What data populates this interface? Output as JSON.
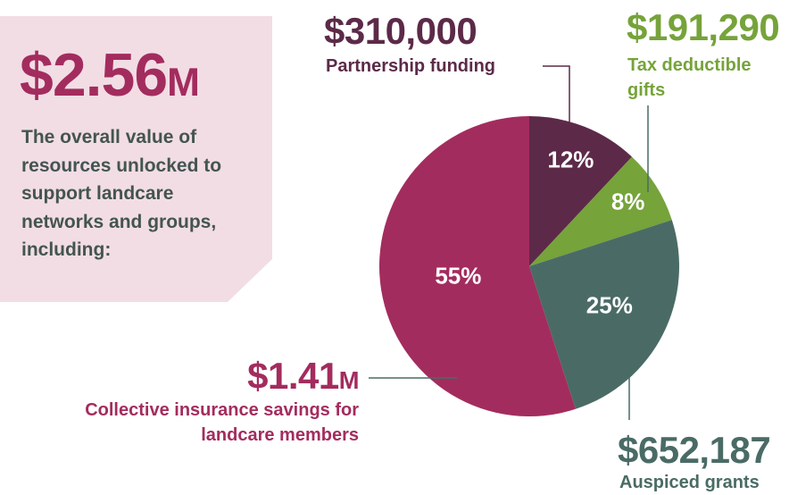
{
  "callout": {
    "total": "$2.56M",
    "description": "The overall value of resources unlocked to support landcare networks and groups, including:"
  },
  "chart_data": {
    "type": "pie",
    "categories": [
      "Partnership funding",
      "Tax deductible gifts",
      "Auspiced grants",
      "Collective insurance savings for landcare members"
    ],
    "values": [
      12,
      8,
      25,
      55
    ],
    "value_labels": [
      "12%",
      "8%",
      "25%",
      "55%"
    ],
    "amount_labels": [
      "$310,000",
      "$191,290",
      "$652,187",
      "$1.41M"
    ],
    "colors": [
      "#5c2a48",
      "#76a33a",
      "#4a6b65",
      "#a32c5e"
    ]
  }
}
